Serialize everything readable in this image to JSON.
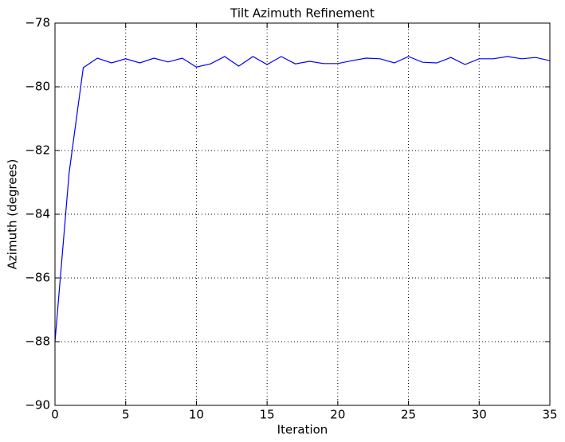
{
  "chart_data": {
    "type": "line",
    "title": "Tilt Azimuth Refinement",
    "xlabel": "Iteration",
    "ylabel": "Azimuth (degrees)",
    "x": [
      0,
      1,
      2,
      3,
      4,
      5,
      6,
      7,
      8,
      9,
      10,
      11,
      12,
      13,
      14,
      15,
      16,
      17,
      18,
      19,
      20,
      21,
      22,
      23,
      24,
      25,
      26,
      27,
      28,
      29,
      30,
      31,
      32,
      33,
      34,
      35
    ],
    "series": [
      {
        "color": "#0000ff",
        "values": [
          -88.0,
          -82.7,
          -79.4,
          -79.1,
          -79.25,
          -79.12,
          -79.25,
          -79.1,
          -79.22,
          -79.1,
          -79.38,
          -79.28,
          -79.05,
          -79.35,
          -79.05,
          -79.3,
          -79.05,
          -79.28,
          -79.2,
          -79.27,
          -79.27,
          -79.18,
          -79.1,
          -79.12,
          -79.25,
          -79.05,
          -79.23,
          -79.25,
          -79.08,
          -79.3,
          -79.12,
          -79.12,
          -79.05,
          -79.12,
          -79.08,
          -79.18
        ]
      }
    ],
    "xlim": [
      0,
      35
    ],
    "xticks": [
      0,
      5,
      10,
      15,
      20,
      25,
      30,
      35
    ],
    "ylim": [
      -90,
      -78
    ],
    "yticks": [
      {
        "value": -90,
        "label": "−90"
      },
      {
        "value": -88,
        "label": "−88"
      },
      {
        "value": -86,
        "label": "−86"
      },
      {
        "value": -84,
        "label": "−84"
      },
      {
        "value": -82,
        "label": "−82"
      },
      {
        "value": -80,
        "label": "−80"
      },
      {
        "value": -78,
        "label": "−78"
      }
    ],
    "grid": true
  }
}
